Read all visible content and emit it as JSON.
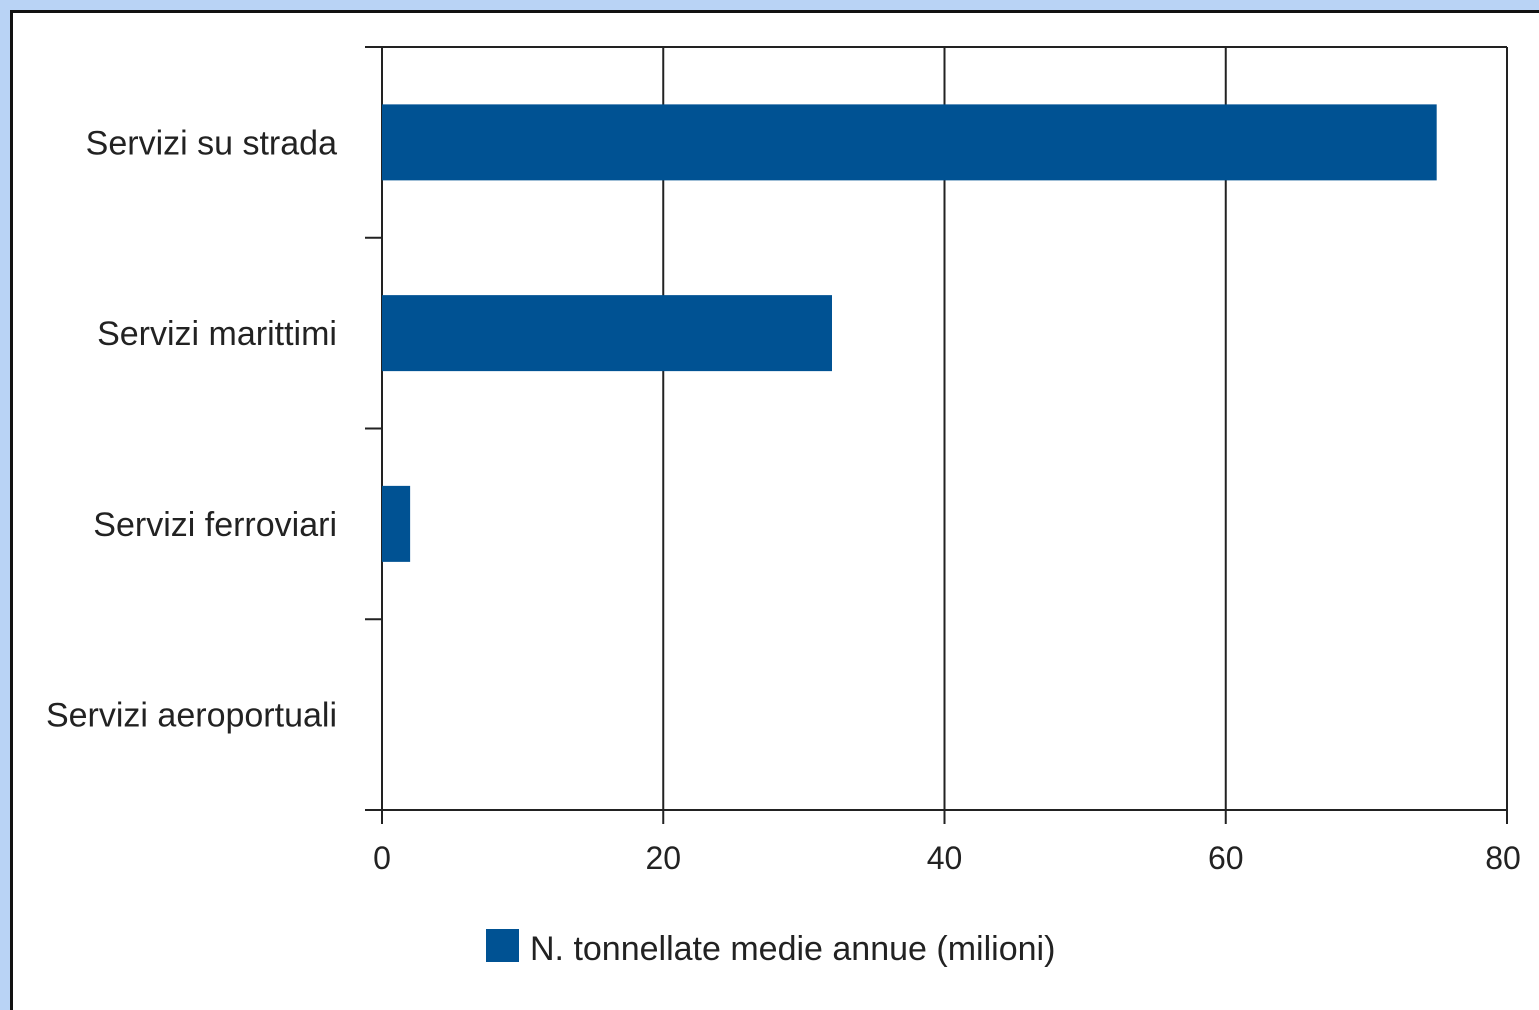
{
  "chart_data": {
    "type": "bar",
    "orientation": "horizontal",
    "categories": [
      "Servizi su strada",
      "Servizi marittimi",
      "Servizi ferroviari",
      "Servizi aeroportuali"
    ],
    "series": [
      {
        "name": "N. tonnellate medie annue (milioni)",
        "values": [
          75,
          32,
          2,
          0
        ]
      }
    ],
    "xlim": [
      0,
      80
    ],
    "xticks": [
      0,
      20,
      40,
      60,
      80
    ],
    "grid": "vertical",
    "legend": "bottom",
    "colors": {
      "bar": "#005293",
      "axis": "#222222"
    }
  }
}
